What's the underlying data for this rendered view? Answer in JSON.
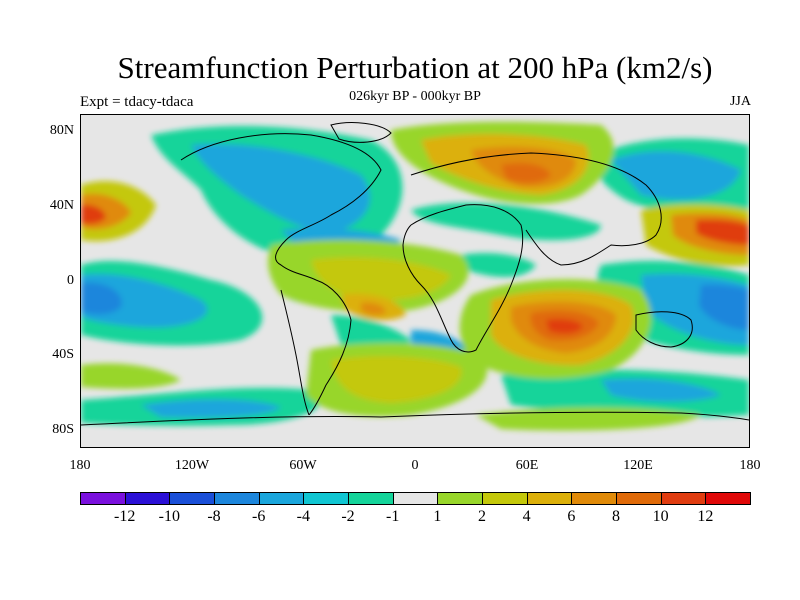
{
  "title": "Streamfunction Perturbation at 200 hPa (km2/s)",
  "subtitle": "026kyr BP - 000kyr BP",
  "experiment_label": "Expt = tdacy-tdaca",
  "season_label": "JJA",
  "y_axis_labels": [
    "80N",
    "40N",
    "0",
    "40S",
    "80S"
  ],
  "x_axis_labels": [
    "180",
    "120W",
    "60W",
    "0",
    "60E",
    "120E",
    "180"
  ],
  "legend": {
    "labels": [
      "-12",
      "-10",
      "-8",
      "-6",
      "-4",
      "-2",
      "-1",
      "1",
      "2",
      "4",
      "6",
      "8",
      "10",
      "12"
    ],
    "colors": [
      "#7a10dd",
      "#2b10d6",
      "#1a4fd8",
      "#1c86dc",
      "#1aa6dc",
      "#10c6d2",
      "#14d49a",
      "#e6e6e6",
      "#98d62a",
      "#c4c80a",
      "#dcb00a",
      "#e08a08",
      "#e06a08",
      "#e03c10",
      "#e00808"
    ]
  }
}
